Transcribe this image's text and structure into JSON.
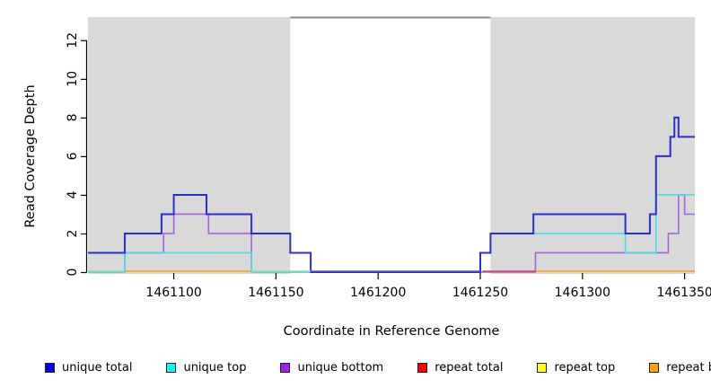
{
  "figure": {
    "xlabel": "Coordinate in Reference Genome",
    "ylabel": "Read Coverage Depth"
  },
  "legend": {
    "items": [
      {
        "label": "unique total",
        "color": "#0000ee"
      },
      {
        "label": "unique top",
        "color": "#00ffff"
      },
      {
        "label": "unique bottom",
        "color": "#a020f0"
      },
      {
        "label": "repeat total",
        "color": "#ff0000"
      },
      {
        "label": "repeat top",
        "color": "#ffff00"
      },
      {
        "label": "repeat bottom",
        "color": "#ffa500"
      }
    ]
  },
  "chart_data": {
    "type": "line",
    "subtype": "step-coverage",
    "title": "",
    "xlabel": "Coordinate in Reference Genome",
    "ylabel": "Read Coverage Depth",
    "xlim": [
      1461058,
      1461355
    ],
    "ylim": [
      0,
      13.2
    ],
    "grid": false,
    "x_ticks": [
      1461100,
      1461150,
      1461200,
      1461250,
      1461300,
      1461350
    ],
    "x_tick_labels": [
      "1461100",
      "1461150",
      "1461200",
      "1461250",
      "1461300",
      "1461350"
    ],
    "y_ticks": [
      0,
      2,
      4,
      6,
      8,
      10,
      12
    ],
    "y_tick_labels": [
      "0",
      "2",
      "4",
      "6",
      "8",
      "10",
      "12"
    ],
    "shaded_regions": [
      {
        "name": "covered-region-left",
        "x0": 1461058,
        "x1": 1461157,
        "fill": "#d9d9d9"
      },
      {
        "name": "covered-region-right",
        "x0": 1461255,
        "x1": 1461355,
        "fill": "#d9d9d9"
      }
    ],
    "gap_top_line": {
      "x0": 1461157,
      "x1": 1461255,
      "color": "#8a8a8a"
    },
    "series": [
      {
        "name": "unique bottom",
        "color": "#a961dd",
        "width": 1.6,
        "steps": [
          [
            1461058,
            0
          ],
          [
            1461076,
            1
          ],
          [
            1461095,
            2
          ],
          [
            1461100,
            3
          ],
          [
            1461117,
            2
          ],
          [
            1461138,
            0
          ],
          [
            1461277,
            1
          ],
          [
            1461342,
            2
          ],
          [
            1461347,
            4
          ],
          [
            1461350,
            3
          ]
        ],
        "x_end": 1461355
      },
      {
        "name": "unique top",
        "color": "#40e0e8",
        "width": 1.6,
        "steps": [
          [
            1461058,
            0
          ],
          [
            1461076,
            1
          ],
          [
            1461138,
            0
          ],
          [
            1461250,
            1
          ],
          [
            1461255,
            2
          ],
          [
            1461321,
            1
          ],
          [
            1461336,
            4
          ]
        ],
        "x_end": 1461355
      },
      {
        "name": "unique total",
        "color": "#2d2dd4",
        "width": 2,
        "steps": [
          [
            1461058,
            1
          ],
          [
            1461076,
            2
          ],
          [
            1461094,
            3
          ],
          [
            1461100,
            4
          ],
          [
            1461116,
            3
          ],
          [
            1461138,
            2
          ],
          [
            1461157,
            1
          ],
          [
            1461167,
            0
          ],
          [
            1461250,
            1
          ],
          [
            1461255,
            2
          ],
          [
            1461276,
            3
          ],
          [
            1461321,
            2
          ],
          [
            1461333,
            3
          ],
          [
            1461336,
            6
          ],
          [
            1461343,
            7
          ],
          [
            1461345,
            8
          ],
          [
            1461347,
            7
          ]
        ],
        "x_end": 1461355
      }
    ],
    "baseline_segments": [
      {
        "name": "unique-top-zero",
        "color": "#9cd6a0",
        "x0": 1461058,
        "x1": 1461076,
        "value": 0
      },
      {
        "name": "repeat-bottom-left",
        "color": "#ff9d00",
        "x0": 1461076,
        "x1": 1461138,
        "value": 0
      },
      {
        "name": "unique-top-zero-2",
        "color": "#9cd6a0",
        "x0": 1461138,
        "x1": 1461167,
        "value": 0
      },
      {
        "name": "unique-gap-zero",
        "color": "#5a4ddb",
        "x0": 1461167,
        "x1": 1461250,
        "value": 0
      },
      {
        "name": "repeat-total-zero",
        "color": "#d84450",
        "x0": 1461251,
        "x1": 1461277,
        "value": 0
      },
      {
        "name": "repeat-bottom-right",
        "color": "#ff9d00",
        "x0": 1461277,
        "x1": 1461355,
        "value": 0
      }
    ],
    "legend_entries": [
      "unique total",
      "unique top",
      "unique bottom",
      "repeat total",
      "repeat top",
      "repeat bottom"
    ],
    "legend_position": "bottom"
  }
}
